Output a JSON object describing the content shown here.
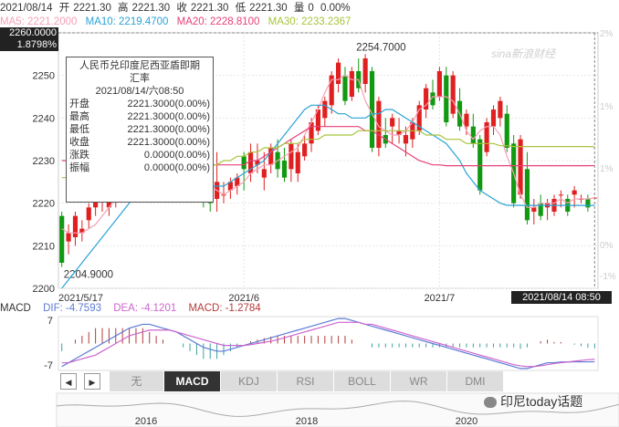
{
  "header": {
    "date": "2021/08/14",
    "open_label": "开",
    "open": "2221.30",
    "high_label": "高",
    "high": "2221.30",
    "low_label": "低",
    "low": "2221.30",
    "close_label": "收",
    "close": "2221.30",
    "vol_label": "量",
    "vol": "0",
    "pct": "0.00%"
  },
  "ma_legend": {
    "ma5": "MA5: 2221.2000",
    "ma10": "MA10: 2219.4700",
    "ma20": "MA20: 2228.8100",
    "ma30": "MA30: 2233.2367",
    "colors": {
      "ma5": "#f5a0b4",
      "ma10": "#2aa3d6",
      "ma20": "#e64079",
      "ma30": "#a8c43c"
    }
  },
  "cursor_box": {
    "value": "2260.0000",
    "pct": "1.8798%"
  },
  "watermark": "sina新浪财经",
  "tooltip": {
    "title_line1": "人民币兑印度尼西亚盾即期",
    "title_line2": "汇率",
    "datetime": "2021/08/14/六08:50",
    "rows": [
      {
        "label": "开盘",
        "value": "2221.3000(0.00%)"
      },
      {
        "label": "最高",
        "value": "2221.3000(0.00%)"
      },
      {
        "label": "最低",
        "value": "2221.3000(0.00%)"
      },
      {
        "label": "收盘",
        "value": "2221.3000(0.00%)"
      },
      {
        "label": "涨跌",
        "value": "0.0000(0.00%)"
      },
      {
        "label": "振幅",
        "value": "0.0000(0.00%)"
      }
    ]
  },
  "bottom_cursor_label": "2021/08/14 08:50",
  "indicator": {
    "name": "MACD",
    "dif": "DIF: -4.7593",
    "dea": "DEA: -4.1201",
    "macd": "MACD: -1.2784",
    "ymax_label": "7",
    "ymin_label": "-7"
  },
  "toolbar": {
    "left_arrow": "◀",
    "right_arrow": "▶",
    "tabs": [
      "无",
      "MACD",
      "KDJ",
      "RSI",
      "BOLL",
      "WR",
      "DMI"
    ],
    "active": "MACD"
  },
  "overview_years": [
    "2016",
    "2018",
    "2020"
  ],
  "footer_brand": "印尼today话题",
  "chart_data": {
    "type": "candlestick",
    "title": "人民币兑印度尼西亚盾即期汇率",
    "ylim": [
      2200,
      2260
    ],
    "y_ticks": [
      "2200",
      "2210",
      "2220",
      "2230",
      "2240",
      "2250"
    ],
    "y_pct_ticks": [
      "-1%",
      "0%",
      "1%",
      "1%",
      "2%"
    ],
    "x_tick_labels": [
      "2021/5/17",
      "2021/6",
      "2021/7"
    ],
    "annotations": {
      "max": "2254.7000",
      "min": "2204.9000"
    },
    "candles": [
      [
        2217,
        2218,
        2205,
        2206
      ],
      [
        2211,
        2215,
        2208,
        2213
      ],
      [
        2212,
        2218,
        2210,
        2217
      ],
      [
        2213,
        2216,
        2211,
        2214
      ],
      [
        2216,
        2220,
        2214,
        2219
      ],
      [
        2219,
        2222,
        2217,
        2221
      ],
      [
        2221,
        2224,
        2218,
        2222
      ],
      [
        2219,
        2224,
        2217,
        2223
      ],
      [
        2221,
        2226,
        2219,
        2225
      ],
      [
        2223,
        2227,
        2221,
        2226
      ],
      [
        2224,
        2229,
        2222,
        2228
      ],
      [
        2226,
        2231,
        2224,
        2230
      ],
      [
        2227,
        2233,
        2225,
        2232
      ],
      [
        2225,
        2232,
        2224,
        2226
      ],
      [
        2226,
        2234,
        2225,
        2233
      ],
      [
        2228,
        2233,
        2226,
        2232
      ],
      [
        2230,
        2231,
        2226,
        2227
      ],
      [
        2231,
        2233,
        2225,
        2226
      ],
      [
        2233,
        2234,
        2226,
        2227
      ],
      [
        2232,
        2234,
        2224,
        2228
      ],
      [
        2232,
        2233,
        2224,
        2226
      ],
      [
        2230,
        2232,
        2219,
        2221
      ],
      [
        2232,
        2233,
        2218,
        2220
      ],
      [
        2221,
        2232,
        2218,
        2225
      ],
      [
        2222,
        2225,
        2220,
        2222
      ],
      [
        2223,
        2226,
        2221,
        2225
      ],
      [
        2224,
        2227,
        2222,
        2226
      ],
      [
        2231,
        2232,
        2223,
        2228
      ],
      [
        2227,
        2234,
        2225,
        2232
      ],
      [
        2229,
        2234,
        2227,
        2230
      ],
      [
        2226,
        2232,
        2223,
        2228
      ],
      [
        2229,
        2234,
        2227,
        2233
      ],
      [
        2232,
        2235,
        2226,
        2228
      ],
      [
        2230,
        2233,
        2225,
        2226
      ],
      [
        2228,
        2235,
        2225,
        2234
      ],
      [
        2227,
        2234,
        2225,
        2232
      ],
      [
        2231,
        2236,
        2230,
        2234
      ],
      [
        2234,
        2240,
        2232,
        2239
      ],
      [
        2237,
        2243,
        2236,
        2242
      ],
      [
        2240,
        2245,
        2238,
        2244
      ],
      [
        2243,
        2251,
        2241,
        2250
      ],
      [
        2248,
        2254,
        2246,
        2253
      ],
      [
        2250,
        2252,
        2243,
        2244
      ],
      [
        2245,
        2252,
        2244,
        2251
      ],
      [
        2251,
        2254,
        2246,
        2247
      ],
      [
        2248,
        2255,
        2246,
        2254
      ],
      [
        2251,
        2252,
        2232,
        2233
      ],
      [
        2233,
        2245,
        2231,
        2244
      ],
      [
        2236,
        2240,
        2233,
        2234
      ],
      [
        2238,
        2241,
        2234,
        2240
      ],
      [
        2236,
        2240,
        2234,
        2237
      ],
      [
        2234,
        2238,
        2231,
        2236
      ],
      [
        2235,
        2240,
        2233,
        2239
      ],
      [
        2237,
        2244,
        2236,
        2243
      ],
      [
        2242,
        2248,
        2240,
        2247
      ],
      [
        2246,
        2249,
        2242,
        2243
      ],
      [
        2245,
        2252,
        2244,
        2251
      ],
      [
        2250,
        2252,
        2238,
        2239
      ],
      [
        2241,
        2251,
        2240,
        2250
      ],
      [
        2244,
        2247,
        2237,
        2238
      ],
      [
        2238,
        2242,
        2236,
        2241
      ],
      [
        2238,
        2241,
        2233,
        2234
      ],
      [
        2235,
        2236,
        2222,
        2223
      ],
      [
        2232,
        2240,
        2231,
        2239
      ],
      [
        2238,
        2243,
        2236,
        2242
      ],
      [
        2240,
        2245,
        2238,
        2244
      ],
      [
        2241,
        2243,
        2232,
        2233
      ],
      [
        2234,
        2236,
        2219,
        2220
      ],
      [
        2222,
        2236,
        2221,
        2235
      ],
      [
        2228,
        2232,
        2215,
        2216
      ],
      [
        2218,
        2221,
        2215,
        2219
      ],
      [
        2220,
        2222,
        2216,
        2217
      ],
      [
        2219,
        2221,
        2216,
        2220
      ],
      [
        2218,
        2222,
        2217,
        2221
      ],
      [
        2222,
        2223,
        2219,
        2222
      ],
      [
        2221,
        2222,
        2217,
        2218
      ],
      [
        2222,
        2224,
        2219,
        2223
      ],
      [
        2221,
        2222,
        2220,
        2221
      ],
      [
        2221,
        2222,
        2218,
        2219
      ],
      [
        2221.3,
        2221.3,
        2221.3,
        2221.3
      ]
    ],
    "ma_series": [
      {
        "name": "MA5",
        "color": "#f5a0b4",
        "values": [
          2214,
          2213,
          2213,
          2213,
          2214,
          2215,
          2217,
          2219,
          2221,
          2223,
          2224,
          2226,
          2228,
          2229,
          2230,
          2231,
          2231,
          2231,
          2229,
          2228,
          2227,
          2225,
          2224,
          2223,
          2222,
          2223,
          2224,
          2225,
          2227,
          2228,
          2229,
          2229,
          2230,
          2231,
          2232,
          2233,
          2236,
          2239,
          2242,
          2246,
          2249,
          2249,
          2250,
          2249,
          2249,
          2244,
          2241,
          2238,
          2237,
          2236,
          2236,
          2237,
          2239,
          2242,
          2243,
          2245,
          2245,
          2245,
          2244,
          2241,
          2237,
          2235,
          2237,
          2238,
          2238,
          2236,
          2231,
          2227,
          2222,
          2219,
          2219,
          2220,
          2220,
          2220,
          2221,
          2220,
          2221,
          2221,
          2221,
          2221.2
        ]
      },
      {
        "name": "MA10",
        "color": "#2aa3d6",
        "values": [
          2200,
          2202,
          2204,
          2206,
          2208,
          2210,
          2212,
          2214,
          2216,
          2218,
          2220,
          2222,
          2224,
          2226,
          2227,
          2228,
          2228,
          2228,
          2227,
          2226,
          2225,
          2225,
          2224,
          2224,
          2224,
          2225,
          2226,
          2227,
          2228,
          2229,
          2230,
          2232,
          2234,
          2236,
          2238,
          2240,
          2242,
          2243,
          2243,
          2243,
          2242,
          2241,
          2241,
          2240,
          2240,
          2240,
          2241,
          2241,
          2242,
          2242,
          2241,
          2240,
          2239,
          2238,
          2237,
          2236,
          2235,
          2234,
          2232,
          2230,
          2227,
          2225,
          2223,
          2222,
          2221,
          2220,
          2219.5,
          2219.5,
          2219.47,
          2219.47,
          2219.47,
          2219.47,
          2219.47,
          2219.47,
          2219.47,
          2219.47,
          2219.47,
          2219.47,
          2219.47,
          2219.47
        ]
      },
      {
        "name": "MA20",
        "color": "#e64079",
        "values": [
          2230,
          2230,
          2230,
          2230,
          2230,
          2230,
          2230,
          2230,
          2231,
          2231,
          2231,
          2231,
          2231,
          2231,
          2231,
          2231,
          2231,
          2231,
          2230,
          2230,
          2230,
          2229,
          2229,
          2229,
          2229,
          2229,
          2229,
          2229,
          2230,
          2230,
          2231,
          2232,
          2233,
          2234,
          2235,
          2236,
          2237,
          2238,
          2238,
          2238,
          2238,
          2238,
          2238,
          2238,
          2238,
          2237,
          2237,
          2236,
          2235,
          2234,
          2233,
          2232,
          2231,
          2230,
          2229.5,
          2229,
          2229,
          2228.8,
          2228.8,
          2228.8,
          2228.8,
          2228.8,
          2228.8,
          2228.8,
          2228.8,
          2228.8,
          2228.8,
          2228.8,
          2228.8,
          2228.8,
          2228.8,
          2228.8,
          2228.8,
          2228.8,
          2228.8,
          2228.8,
          2228.8,
          2228.8,
          2228.8,
          2228.81
        ]
      },
      {
        "name": "MA30",
        "color": "#a8c43c",
        "values": [
          2226,
          2226,
          2226,
          2226,
          2226,
          2226,
          2226,
          2226,
          2226,
          2226,
          2226,
          2226,
          2226,
          2226,
          2226,
          2226,
          2227,
          2227,
          2227,
          2227,
          2228,
          2228,
          2229,
          2229,
          2230,
          2230,
          2231,
          2231,
          2232,
          2232,
          2233,
          2233,
          2233,
          2234,
          2234,
          2234,
          2235,
          2235,
          2235,
          2236,
          2236,
          2236,
          2236,
          2236,
          2237,
          2237,
          2237,
          2237,
          2237,
          2237,
          2237,
          2237,
          2237,
          2237,
          2236,
          2236,
          2236,
          2235,
          2235,
          2235,
          2234,
          2234,
          2234,
          2234,
          2234,
          2233.5,
          2233.5,
          2233.3,
          2233.3,
          2233.3,
          2233.3,
          2233.3,
          2233.3,
          2233.3,
          2233.3,
          2233.3,
          2233.3,
          2233.3,
          2233.3,
          2233.24
        ]
      }
    ],
    "macd": {
      "ylim": [
        -7,
        7
      ],
      "dif": [
        -6,
        -5,
        -4,
        -3,
        -2,
        -1,
        0,
        1,
        2,
        3,
        4,
        4.5,
        5,
        5,
        4.5,
        4,
        3.5,
        3,
        2,
        1,
        0,
        -1,
        -1.5,
        -2,
        -2,
        -1.5,
        -1,
        -0.5,
        0,
        0.5,
        1,
        1.5,
        2,
        2.5,
        3,
        3.5,
        4,
        4.5,
        5,
        5.5,
        6,
        6.5,
        6.5,
        6,
        5.5,
        5,
        4.5,
        4,
        3.5,
        3,
        2.5,
        2,
        1.5,
        1,
        0.5,
        0,
        -0.5,
        -1,
        -1.5,
        -2,
        -2.5,
        -3,
        -3.5,
        -4,
        -4.5,
        -5,
        -5.5,
        -6,
        -6.5,
        -6.5,
        -6,
        -5.5,
        -5,
        -5,
        -4.8,
        -4.8,
        -4.76,
        -4.76,
        -4.76,
        -4.7593
      ],
      "dea": [
        -5,
        -5,
        -4.5,
        -4,
        -3.5,
        -3,
        -2,
        -1,
        0,
        1,
        2,
        2.5,
        3,
        3.5,
        3.5,
        3.5,
        3.5,
        3,
        2.5,
        2,
        1.5,
        1,
        0.5,
        0,
        -0.5,
        -0.5,
        -0.5,
        -0.5,
        -0.3,
        0,
        0.3,
        0.6,
        1,
        1.5,
        2,
        2.5,
        3,
        3.5,
        4,
        4.5,
        5,
        5.5,
        5.5,
        5.5,
        5.5,
        5,
        5,
        4.5,
        4,
        3.5,
        3,
        2.5,
        2,
        1.5,
        1,
        0.5,
        0,
        -0.5,
        -1,
        -1.5,
        -2,
        -2.5,
        -3,
        -3.5,
        -4,
        -4.5,
        -5,
        -5.5,
        -5.8,
        -6,
        -6,
        -5.8,
        -5.5,
        -5.2,
        -5,
        -4.8,
        -4.6,
        -4.4,
        -4.2,
        -4.1201
      ]
    }
  }
}
